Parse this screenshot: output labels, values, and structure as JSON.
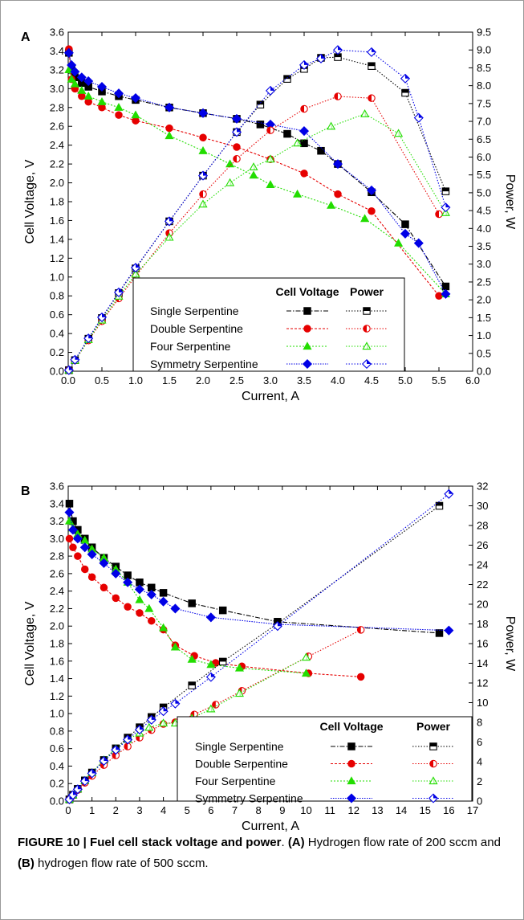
{
  "caption": {
    "figure_label": "FIGURE 10 | Fuel cell stack voltage and power",
    "period": ".",
    "part_a_label": "(A)",
    "part_a_text": " Hydrogen flow rate of 200 sccm and ",
    "part_b_label": "(B)",
    "part_b_text": " hydrogen flow rate of 500 sccm."
  },
  "colors": {
    "single": "#000000",
    "double": "#e60000",
    "four": "#22dd00",
    "symmetry": "#0000e6"
  },
  "chart_data": [
    {
      "panel": "A",
      "type": "line",
      "xlabel": "Current, A",
      "ylabel": "Cell Voltage, V",
      "y2label": "Power, W",
      "xlim": [
        0,
        6
      ],
      "ylim": [
        0,
        3.6
      ],
      "y2lim": [
        0,
        9.5
      ],
      "xticks": [
        "0.0",
        "0.5",
        "1.0",
        "1.5",
        "2.0",
        "2.5",
        "3.0",
        "3.5",
        "4.0",
        "4.5",
        "5.0",
        "5.5",
        "6.0"
      ],
      "yticks": [
        "0.0",
        "0.2",
        "0.4",
        "0.6",
        "0.8",
        "1.0",
        "1.2",
        "1.4",
        "1.6",
        "1.8",
        "2.0",
        "2.2",
        "2.4",
        "2.6",
        "2.8",
        "3.0",
        "3.2",
        "3.4",
        "3.6"
      ],
      "y2ticks": [
        "0.0",
        "0.5",
        "1.0",
        "1.5",
        "2.0",
        "2.5",
        "3.0",
        "3.5",
        "4.0",
        "4.5",
        "5.0",
        "5.5",
        "6.0",
        "6.5",
        "7.0",
        "7.5",
        "8.0",
        "8.5",
        "9.0",
        "9.5"
      ],
      "legend": {
        "position": "bottom-center",
        "header_voltage": "Cell Voltage",
        "header_power": "Power",
        "entries": [
          "Single Serpentine",
          "Double Serpentine",
          "Four Serpentine",
          "Symmetry Serpentine"
        ]
      },
      "series": [
        {
          "name": "Single Serpentine",
          "kind": "voltage",
          "x": [
            0.01,
            0.05,
            0.1,
            0.2,
            0.3,
            0.5,
            0.75,
            1.0,
            1.5,
            2.0,
            2.5,
            2.85,
            3.25,
            3.5,
            3.75,
            4.0,
            4.5,
            5.0,
            5.6
          ],
          "y": [
            3.38,
            3.2,
            3.12,
            3.06,
            3.02,
            2.97,
            2.92,
            2.88,
            2.8,
            2.74,
            2.68,
            2.62,
            2.52,
            2.42,
            2.34,
            2.2,
            1.9,
            1.56,
            0.9
          ]
        },
        {
          "name": "Double Serpentine",
          "kind": "voltage",
          "x": [
            0.01,
            0.05,
            0.1,
            0.2,
            0.3,
            0.5,
            0.75,
            1.0,
            1.5,
            2.0,
            2.5,
            3.0,
            3.5,
            4.0,
            4.5,
            5.5
          ],
          "y": [
            3.42,
            3.1,
            3.0,
            2.92,
            2.86,
            2.8,
            2.72,
            2.66,
            2.58,
            2.48,
            2.38,
            2.25,
            2.1,
            1.88,
            1.7,
            0.8
          ]
        },
        {
          "name": "Four Serpentine",
          "kind": "voltage",
          "x": [
            0.01,
            0.05,
            0.1,
            0.2,
            0.3,
            0.5,
            0.75,
            1.0,
            1.5,
            2.0,
            2.4,
            2.75,
            3.0,
            3.4,
            3.9,
            4.4,
            4.9,
            5.6
          ],
          "y": [
            3.2,
            3.1,
            3.05,
            2.98,
            2.92,
            2.86,
            2.8,
            2.72,
            2.5,
            2.34,
            2.2,
            2.08,
            1.98,
            1.88,
            1.76,
            1.62,
            1.36,
            0.82
          ]
        },
        {
          "name": "Symmetry Serpentine",
          "kind": "voltage",
          "x": [
            0.01,
            0.05,
            0.1,
            0.2,
            0.3,
            0.5,
            0.75,
            1.0,
            1.5,
            2.0,
            2.5,
            3.0,
            3.5,
            4.0,
            4.5,
            5.0,
            5.2,
            5.6
          ],
          "y": [
            3.38,
            3.25,
            3.18,
            3.12,
            3.08,
            3.02,
            2.95,
            2.9,
            2.8,
            2.74,
            2.68,
            2.62,
            2.55,
            2.2,
            1.92,
            1.46,
            1.36,
            0.82
          ]
        },
        {
          "name": "Single Serpentine",
          "kind": "power",
          "x": [
            0.01,
            0.1,
            0.3,
            0.5,
            0.75,
            1.0,
            1.5,
            2.0,
            2.5,
            2.85,
            3.25,
            3.5,
            3.75,
            4.0,
            4.5,
            5.0,
            5.6
          ],
          "y": [
            0.03,
            0.31,
            0.91,
            1.49,
            2.19,
            2.88,
            4.2,
            5.48,
            6.7,
            7.47,
            8.19,
            8.47,
            8.78,
            8.8,
            8.55,
            7.8,
            5.04
          ]
        },
        {
          "name": "Double Serpentine",
          "kind": "power",
          "x": [
            0.01,
            0.1,
            0.3,
            0.5,
            0.75,
            1.0,
            1.5,
            2.0,
            2.5,
            3.0,
            3.5,
            4.0,
            4.5,
            5.5
          ],
          "y": [
            0.03,
            0.3,
            0.86,
            1.4,
            2.04,
            2.66,
            3.87,
            4.96,
            5.95,
            6.75,
            7.35,
            7.7,
            7.65,
            4.4
          ]
        },
        {
          "name": "Four Serpentine",
          "kind": "power",
          "x": [
            0.01,
            0.1,
            0.3,
            0.5,
            0.75,
            1.0,
            1.5,
            2.0,
            2.4,
            2.75,
            3.0,
            3.4,
            3.9,
            4.4,
            4.9,
            5.6
          ],
          "y": [
            0.03,
            0.3,
            0.88,
            1.43,
            2.1,
            2.72,
            3.75,
            4.68,
            5.28,
            5.72,
            5.94,
            6.39,
            6.86,
            7.21,
            6.66,
            4.44
          ]
        },
        {
          "name": "Symmetry Serpentine",
          "kind": "power",
          "x": [
            0.01,
            0.1,
            0.3,
            0.5,
            0.75,
            1.0,
            1.5,
            2.0,
            2.5,
            3.0,
            3.5,
            3.75,
            4.0,
            4.5,
            5.0,
            5.2,
            5.6
          ],
          "y": [
            0.03,
            0.32,
            0.92,
            1.51,
            2.21,
            2.9,
            4.2,
            5.48,
            6.7,
            7.86,
            8.58,
            8.76,
            9.0,
            8.94,
            8.2,
            7.1,
            4.59
          ]
        }
      ]
    },
    {
      "panel": "B",
      "type": "line",
      "xlabel": "Current, A",
      "ylabel": "Cell Voltage, V",
      "y2label": "Power, W",
      "xlim": [
        0,
        17
      ],
      "ylim": [
        0,
        3.6
      ],
      "y2lim": [
        0,
        32
      ],
      "xticks": [
        "0",
        "1",
        "2",
        "3",
        "4",
        "5",
        "6",
        "7",
        "8",
        "9",
        "10",
        "11",
        "12",
        "13",
        "14",
        "15",
        "16",
        "17"
      ],
      "yticks": [
        "0.0",
        "0.2",
        "0.4",
        "0.6",
        "0.8",
        "1.0",
        "1.2",
        "1.4",
        "1.6",
        "1.8",
        "2.0",
        "2.2",
        "2.4",
        "2.6",
        "2.8",
        "3.0",
        "3.2",
        "3.4",
        "3.6"
      ],
      "y2ticks": [
        "0",
        "2",
        "4",
        "6",
        "8",
        "10",
        "12",
        "14",
        "16",
        "18",
        "20",
        "22",
        "24",
        "26",
        "28",
        "30",
        "32"
      ],
      "legend": {
        "position": "bottom-right",
        "header_voltage": "Cell Voltage",
        "header_power": "Power",
        "entries": [
          "Single Serpentine",
          "Double Serpentine",
          "Four Serpentine",
          "Symmetry Serpentine"
        ]
      },
      "series": [
        {
          "name": "Single Serpentine",
          "kind": "voltage",
          "x": [
            0.05,
            0.2,
            0.4,
            0.7,
            1.0,
            1.5,
            2.0,
            2.5,
            3.0,
            3.5,
            4.0,
            5.2,
            6.5,
            8.8,
            15.6
          ],
          "y": [
            3.4,
            3.2,
            3.1,
            3.0,
            2.9,
            2.78,
            2.68,
            2.58,
            2.5,
            2.44,
            2.38,
            2.26,
            2.18,
            2.05,
            1.92
          ]
        },
        {
          "name": "Double Serpentine",
          "kind": "voltage",
          "x": [
            0.05,
            0.2,
            0.4,
            0.7,
            1.0,
            1.5,
            2.0,
            2.5,
            3.0,
            3.5,
            4.0,
            4.5,
            5.3,
            6.2,
            7.3,
            10.1,
            12.3
          ],
          "y": [
            3.0,
            2.9,
            2.8,
            2.65,
            2.56,
            2.44,
            2.32,
            2.22,
            2.15,
            2.06,
            1.96,
            1.78,
            1.66,
            1.58,
            1.54,
            1.46,
            1.42
          ]
        },
        {
          "name": "Four Serpentine",
          "kind": "voltage",
          "x": [
            0.05,
            0.2,
            0.4,
            0.7,
            1.0,
            1.5,
            2.0,
            2.5,
            3.0,
            3.4,
            4.0,
            4.5,
            5.2,
            6.0,
            7.2,
            10.0
          ],
          "y": [
            3.2,
            3.12,
            3.05,
            2.98,
            2.88,
            2.78,
            2.65,
            2.5,
            2.3,
            2.2,
            1.98,
            1.76,
            1.62,
            1.56,
            1.52,
            1.46
          ]
        },
        {
          "name": "Symmetry Serpentine",
          "kind": "voltage",
          "x": [
            0.05,
            0.2,
            0.4,
            0.7,
            1.0,
            1.5,
            2.0,
            2.5,
            3.0,
            3.5,
            4.0,
            4.5,
            6.0,
            8.8,
            16.0
          ],
          "y": [
            3.3,
            3.1,
            3.0,
            2.9,
            2.82,
            2.72,
            2.6,
            2.5,
            2.42,
            2.36,
            2.28,
            2.2,
            2.1,
            2.02,
            1.95
          ]
        },
        {
          "name": "Single Serpentine",
          "kind": "power",
          "x": [
            0.05,
            0.2,
            0.4,
            0.7,
            1.0,
            1.5,
            2.0,
            2.5,
            3.0,
            3.5,
            4.0,
            5.2,
            6.5,
            8.8,
            15.6
          ],
          "y": [
            0.17,
            0.64,
            1.24,
            2.1,
            2.9,
            4.17,
            5.36,
            6.45,
            7.5,
            8.54,
            9.52,
            11.75,
            14.17,
            18.04,
            30.0
          ]
        },
        {
          "name": "Double Serpentine",
          "kind": "power",
          "x": [
            0.05,
            0.2,
            0.4,
            0.7,
            1.0,
            1.5,
            2.0,
            2.5,
            3.0,
            3.5,
            4.0,
            4.5,
            5.3,
            6.2,
            7.3,
            10.1,
            12.3
          ],
          "y": [
            0.15,
            0.58,
            1.12,
            1.86,
            2.56,
            3.66,
            4.64,
            5.55,
            6.45,
            7.21,
            7.84,
            8.01,
            8.8,
            9.8,
            11.2,
            14.7,
            17.4
          ]
        },
        {
          "name": "Four Serpentine",
          "kind": "power",
          "x": [
            0.05,
            0.2,
            0.4,
            0.7,
            1.0,
            1.5,
            2.0,
            2.5,
            3.0,
            3.4,
            4.0,
            4.5,
            5.2,
            6.0,
            7.2,
            10.0
          ],
          "y": [
            0.16,
            0.62,
            1.22,
            2.09,
            2.88,
            4.17,
            5.3,
            6.25,
            6.9,
            7.48,
            7.92,
            7.92,
            8.42,
            9.36,
            10.94,
            14.6
          ]
        },
        {
          "name": "Symmetry Serpentine",
          "kind": "power",
          "x": [
            0.05,
            0.2,
            0.4,
            0.7,
            1.0,
            1.5,
            2.0,
            2.5,
            3.0,
            3.5,
            4.0,
            4.5,
            6.0,
            8.8,
            16.0
          ],
          "y": [
            0.17,
            0.62,
            1.2,
            2.03,
            2.82,
            4.08,
            5.2,
            6.25,
            7.26,
            8.26,
            9.12,
            9.9,
            12.6,
            17.78,
            31.2
          ]
        }
      ]
    }
  ]
}
